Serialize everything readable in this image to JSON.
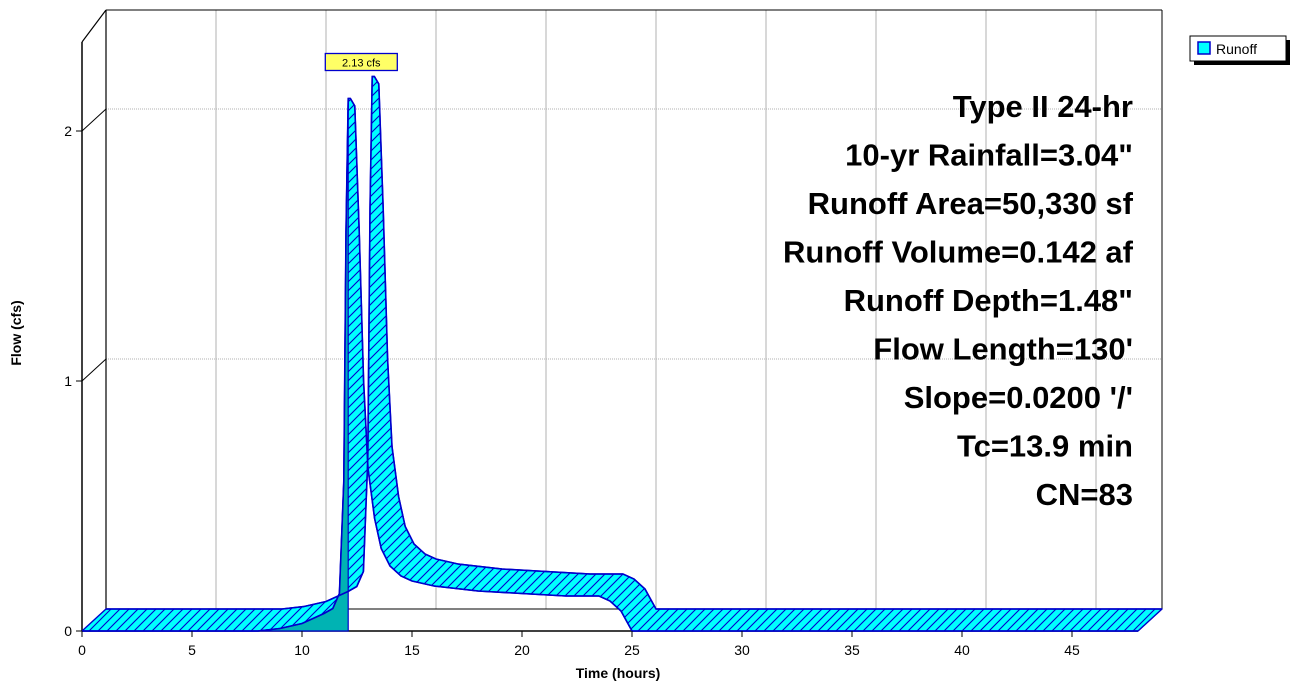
{
  "chart_data": {
    "type": "area",
    "xlabel": "Time  (hours)",
    "ylabel": "Flow  (cfs)",
    "xlim": [
      0,
      48
    ],
    "ylim": [
      0,
      2.4
    ],
    "x_ticks": [
      0,
      5,
      10,
      15,
      20,
      25,
      30,
      35,
      40,
      45
    ],
    "y_ticks": [
      0,
      1,
      2
    ],
    "grid": true,
    "legend_position": "top-right",
    "series": [
      {
        "name": "Runoff",
        "color": "#00ffff",
        "x": [
          0,
          8,
          9,
          10,
          10.5,
          11,
          11.4,
          11.7,
          11.9,
          12.0,
          12.1,
          12.2,
          12.4,
          12.6,
          12.8,
          13.0,
          13.3,
          13.6,
          14.0,
          14.5,
          15,
          16,
          17,
          18,
          20,
          22,
          23.5,
          24.0,
          24.5,
          25,
          48
        ],
        "y": [
          0,
          0,
          0.01,
          0.03,
          0.05,
          0.07,
          0.09,
          0.15,
          0.6,
          1.6,
          2.13,
          2.13,
          2.1,
          1.6,
          1.0,
          0.65,
          0.45,
          0.33,
          0.26,
          0.22,
          0.2,
          0.18,
          0.17,
          0.16,
          0.15,
          0.14,
          0.14,
          0.12,
          0.08,
          0,
          0
        ]
      }
    ],
    "peak_label": "2.13 cfs",
    "peak_x": 12.15,
    "peak_y": 2.13
  },
  "legend": {
    "label": "Runoff"
  },
  "annotations": [
    "Type II 24-hr",
    "10-yr Rainfall=3.04\"",
    "Runoff Area=50,330 sf",
    "Runoff Volume=0.142 af",
    "Runoff Depth=1.48\"",
    "Flow Length=130'",
    "Slope=0.0200 '/'",
    "Tc=13.9 min",
    "CN=83"
  ],
  "colors": {
    "fill": "#00ffff",
    "fill_side": "#00b8b8",
    "outline": "#0000cc",
    "grid": "#b0b0b0",
    "label_bg": "#ffff66"
  }
}
